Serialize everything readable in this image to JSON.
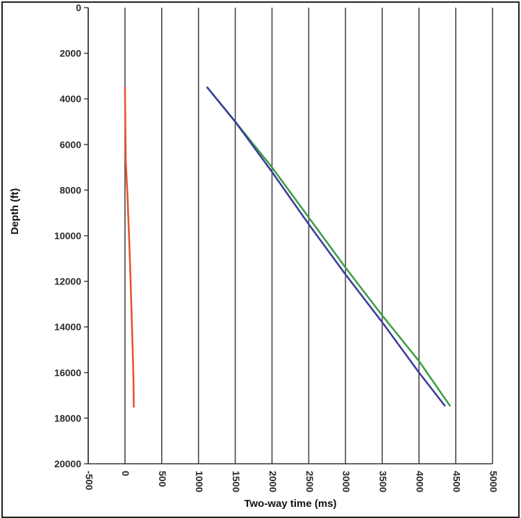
{
  "chart_data": {
    "type": "line",
    "title": "",
    "xlabel": "Two-way time (ms)",
    "ylabel": "Depth (ft)",
    "xlim": [
      -500,
      5000
    ],
    "ylim": [
      0,
      20000
    ],
    "y_inverted": true,
    "grid": {
      "vertical": true,
      "horizontal": false
    },
    "legend": "none",
    "x_ticks": [
      "-500",
      "0",
      "500",
      "1000",
      "1500",
      "2000",
      "2500",
      "3000",
      "3500",
      "4000",
      "4500",
      "5000"
    ],
    "y_ticks": [
      "0",
      "2000",
      "4000",
      "6000",
      "8000",
      "10000",
      "12000",
      "14000",
      "16000",
      "18000",
      "20000"
    ],
    "series": [
      {
        "color": "#e8542a",
        "x": [
          0,
          5,
          10,
          20,
          35,
          45,
          55,
          70,
          80,
          95,
          105,
          115,
          120
        ],
        "y": [
          3500,
          5200,
          6700,
          7300,
          8300,
          9200,
          10000,
          11300,
          12400,
          14000,
          15000,
          16300,
          17500
        ]
      },
      {
        "color": "#3d9e49",
        "x": [
          1120,
          1500,
          2000,
          2500,
          3000,
          3500,
          4000,
          4420
        ],
        "y": [
          3500,
          5000,
          7000,
          9200,
          11400,
          13500,
          15500,
          17450
        ]
      },
      {
        "color": "#3a3f9a",
        "x": [
          1120,
          1500,
          2000,
          2500,
          3000,
          3500,
          4000,
          4350
        ],
        "y": [
          3500,
          5000,
          7200,
          9500,
          11700,
          13800,
          16000,
          17450
        ]
      }
    ]
  }
}
